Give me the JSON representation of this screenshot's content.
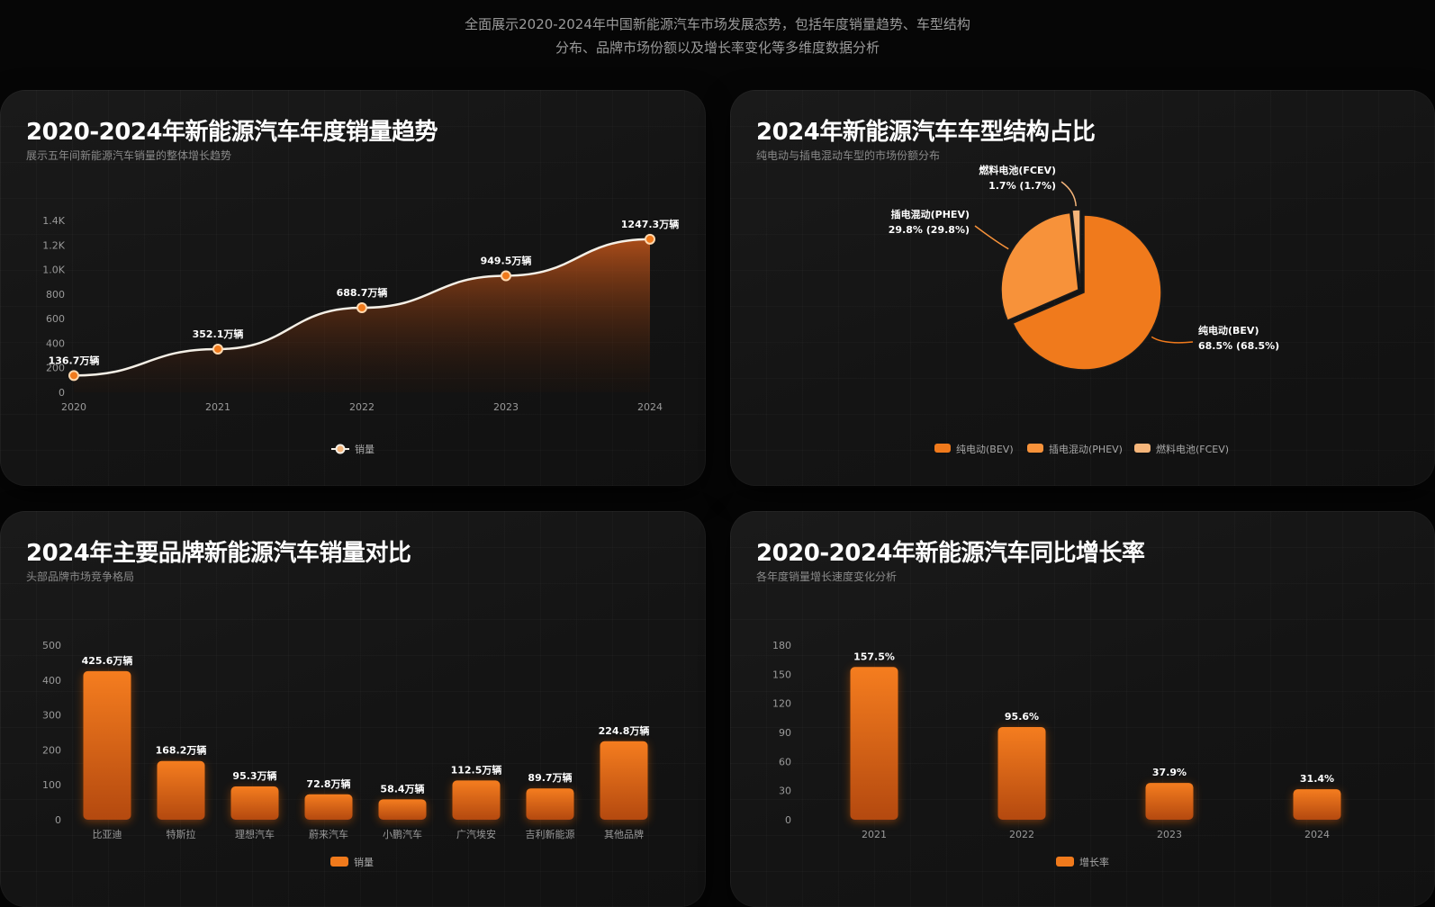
{
  "page": {
    "subtitle_line1": "全面展示2020-2024年中国新能源汽车市场发展态势，包括年度销量趋势、车型结构",
    "subtitle_line2": "分布、品牌市场份额以及增长率变化等多维度数据分析"
  },
  "colors": {
    "accent": "#f07a1c",
    "accent_light": "#f7923a",
    "accent_pale": "#f5b57a",
    "line": "#f4efe6"
  },
  "cards": {
    "trend": {
      "title": "2020-2024年新能源汽车年度销量趋势",
      "subtitle": "展示五年间新能源汽车销量的整体增长趋势"
    },
    "share": {
      "title": "2024年新能源汽车车型结构占比",
      "subtitle": "纯电动与插电混动车型的市场份额分布"
    },
    "brand": {
      "title": "2024年主要品牌新能源汽车销量对比",
      "subtitle": "头部品牌市场竞争格局"
    },
    "growth": {
      "title": "2020-2024年新能源汽车同比增长率",
      "subtitle": "各年度销量增长速度变化分析"
    }
  },
  "chart_data": [
    {
      "id": "trend",
      "type": "area",
      "categories": [
        "2020",
        "2021",
        "2022",
        "2023",
        "2024"
      ],
      "series": [
        {
          "name": "销量",
          "values": [
            136.7,
            352.1,
            688.7,
            949.5,
            1247.3
          ]
        }
      ],
      "data_labels": [
        "136.7万辆",
        "352.1万辆",
        "688.7万辆",
        "949.5万辆",
        "1247.3万辆"
      ],
      "y_ticks": [
        "0",
        "200",
        "400",
        "600",
        "800",
        "1.0K",
        "1.2K",
        "1.4K"
      ],
      "ylim": [
        0,
        1400
      ],
      "legend": "bottom"
    },
    {
      "id": "share",
      "type": "pie",
      "slices": [
        {
          "name": "纯电动(BEV)",
          "value": 68.5,
          "label": "68.5% (68.5%)"
        },
        {
          "name": "插电混动(PHEV)",
          "value": 29.8,
          "label": "29.8% (29.8%)"
        },
        {
          "name": "燃料电池(FCEV)",
          "value": 1.7,
          "label": "1.7% (1.7%)"
        }
      ],
      "legend": "bottom"
    },
    {
      "id": "brand",
      "type": "bar",
      "categories": [
        "比亚迪",
        "特斯拉",
        "理想汽车",
        "蔚来汽车",
        "小鹏汽车",
        "广汽埃安",
        "吉利新能源",
        "其他品牌"
      ],
      "series": [
        {
          "name": "销量",
          "values": [
            425.6,
            168.2,
            95.3,
            72.8,
            58.4,
            112.5,
            89.7,
            224.8
          ]
        }
      ],
      "data_labels": [
        "425.6万辆",
        "168.2万辆",
        "95.3万辆",
        "72.8万辆",
        "58.4万辆",
        "112.5万辆",
        "89.7万辆",
        "224.8万辆"
      ],
      "y_ticks": [
        "0",
        "100",
        "200",
        "300",
        "400",
        "500"
      ],
      "ylim": [
        0,
        500
      ],
      "legend": "bottom"
    },
    {
      "id": "growth",
      "type": "bar",
      "categories": [
        "2021",
        "2022",
        "2023",
        "2024"
      ],
      "series": [
        {
          "name": "增长率",
          "values": [
            157.5,
            95.6,
            37.9,
            31.4
          ]
        }
      ],
      "data_labels": [
        "157.5%",
        "95.6%",
        "37.9%",
        "31.4%"
      ],
      "y_ticks": [
        "0",
        "30",
        "60",
        "90",
        "120",
        "150",
        "180"
      ],
      "ylim": [
        0,
        180
      ],
      "legend": "bottom"
    }
  ]
}
